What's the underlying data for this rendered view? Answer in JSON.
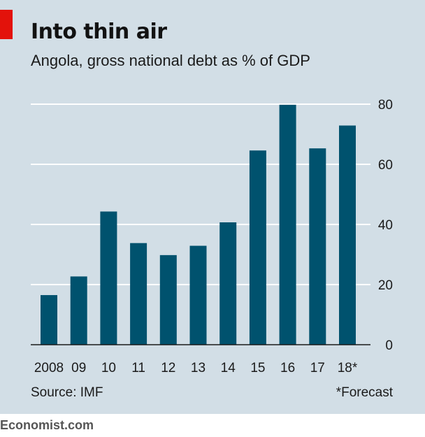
{
  "title": "Into thin air",
  "subtitle": "Angola, gross national debt as % of GDP",
  "source": "Source: IMF",
  "footnote": "*Forecast",
  "credit": "Economist.com",
  "colors": {
    "background": "#d2dee6",
    "bar": "#00526e",
    "accent": "#e3120b",
    "grid": "#ffffff"
  },
  "chart_data": {
    "type": "bar",
    "categories": [
      "2008",
      "09",
      "10",
      "11",
      "12",
      "13",
      "14",
      "15",
      "16",
      "17",
      "18*"
    ],
    "values": [
      16.5,
      22.7,
      44.3,
      33.8,
      29.8,
      32.9,
      40.7,
      64.6,
      79.8,
      65.3,
      72.9
    ],
    "ylim": [
      0,
      80
    ],
    "yticks": [
      0,
      20,
      40,
      60,
      80
    ],
    "ytick_labels": [
      "0",
      "20",
      "40",
      "60",
      "80"
    ],
    "yaxis_position": "right",
    "grid": true
  }
}
